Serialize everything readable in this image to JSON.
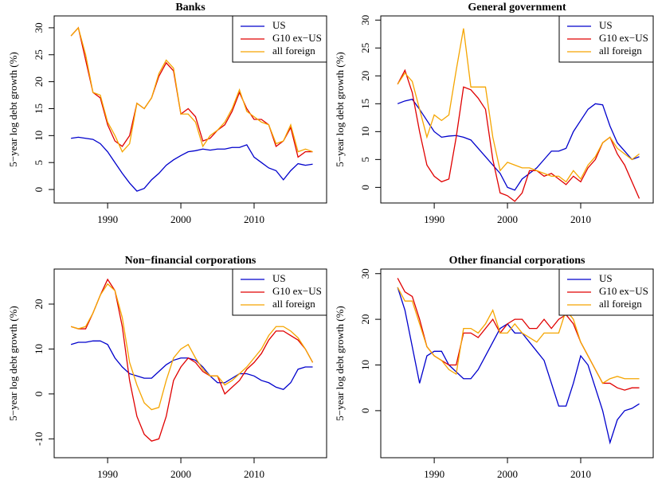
{
  "chart_data": [
    {
      "type": "line",
      "title": "Banks",
      "ylabel": "5−year log debt growth (%)",
      "legend": "topright",
      "x": [
        1985,
        1986,
        1987,
        1988,
        1989,
        1990,
        1991,
        1992,
        1993,
        1994,
        1995,
        1996,
        1997,
        1998,
        1999,
        2000,
        2001,
        2002,
        2003,
        2004,
        2005,
        2006,
        2007,
        2008,
        2009,
        2010,
        2011,
        2012,
        2013,
        2014,
        2015,
        2016,
        2017,
        2018
      ],
      "xlim": [
        1982.7,
        2019.9
      ],
      "xticks": [
        1990,
        2000,
        2010
      ],
      "ylim": [
        -2.5,
        32.2
      ],
      "yticks": [
        0,
        5,
        10,
        15,
        20,
        25,
        30
      ],
      "series": [
        {
          "name": "US",
          "color": "#0000cc",
          "values": [
            9.5,
            9.7,
            9.5,
            9.3,
            8.5,
            7,
            5,
            3,
            1.2,
            -0.3,
            0.2,
            1.8,
            3,
            4.5,
            5.5,
            6.3,
            7,
            7.2,
            7.5,
            7.3,
            7.5,
            7.5,
            7.8,
            7.8,
            8.3,
            6,
            5,
            4,
            3.5,
            1.8,
            3.5,
            4.8,
            4.5,
            4.7
          ]
        },
        {
          "name": "G10 ex−US",
          "color": "#e00000",
          "values": [
            28.5,
            30,
            24,
            18,
            17,
            12,
            9,
            8,
            10,
            16,
            15,
            17,
            21,
            23.5,
            22,
            14,
            15,
            13.5,
            9,
            9.5,
            11,
            12,
            14.5,
            18,
            15,
            13,
            13,
            12,
            8,
            9,
            11.5,
            6,
            7,
            7
          ]
        },
        {
          "name": "all foreign",
          "color": "#f5a500",
          "values": [
            28.5,
            30,
            25,
            18,
            17.5,
            12.5,
            10,
            7,
            8.5,
            16,
            15,
            17,
            21.5,
            24,
            22.5,
            14,
            14,
            12.5,
            8,
            10,
            11,
            12.5,
            15,
            18.5,
            14.5,
            13.5,
            12.5,
            12,
            8.5,
            9,
            12,
            7,
            7.5,
            7
          ]
        }
      ]
    },
    {
      "type": "line",
      "title": "General government",
      "ylabel": "5−year log debt growth (%)",
      "legend": "topright",
      "x": [
        1985,
        1986,
        1987,
        1988,
        1989,
        1990,
        1991,
        1992,
        1993,
        1994,
        1995,
        1996,
        1997,
        1998,
        1999,
        2000,
        2001,
        2002,
        2003,
        2004,
        2005,
        2006,
        2007,
        2008,
        2009,
        2010,
        2011,
        2012,
        2013,
        2014,
        2015,
        2016,
        2017,
        2018
      ],
      "xlim": [
        1982.7,
        2019.9
      ],
      "xticks": [
        1990,
        2000,
        2010
      ],
      "ylim": [
        -2.8,
        30.75
      ],
      "yticks": [
        0,
        5,
        10,
        15,
        20,
        25,
        30
      ],
      "series": [
        {
          "name": "US",
          "color": "#0000cc",
          "values": [
            15,
            15.5,
            15.8,
            14,
            12,
            10,
            9,
            9.2,
            9.3,
            9,
            8.5,
            7,
            5.5,
            4,
            2.5,
            0,
            -0.5,
            1.5,
            2.5,
            3.5,
            5,
            6.5,
            6.5,
            7,
            10,
            12,
            14,
            15,
            14.8,
            11,
            8,
            6.5,
            5,
            5.5
          ]
        },
        {
          "name": "G10 ex−US",
          "color": "#e00000",
          "values": [
            18.5,
            21,
            17,
            10,
            4,
            2,
            1,
            1.5,
            9,
            18,
            17.5,
            16,
            14,
            5,
            -1,
            -1.5,
            -2.5,
            -1,
            3,
            3,
            2,
            2.5,
            1.5,
            0.5,
            2,
            1,
            3.5,
            5,
            8,
            9,
            6,
            4,
            1,
            -2
          ]
        },
        {
          "name": "all foreign",
          "color": "#f5a500",
          "values": [
            18.5,
            20.5,
            19,
            14,
            9,
            13,
            12,
            13,
            21,
            28.5,
            18,
            18,
            18,
            9,
            3,
            4.5,
            4,
            3.5,
            3.5,
            3,
            2.5,
            2,
            2,
            1,
            3,
            1.5,
            4,
            5.5,
            8,
            9,
            7,
            6,
            5,
            6
          ]
        }
      ]
    },
    {
      "type": "line",
      "title": "Non−financial corporations",
      "ylabel": "5−year log debt growth (%)",
      "legend": "topright",
      "x": [
        1985,
        1986,
        1987,
        1988,
        1989,
        1990,
        1991,
        1992,
        1993,
        1994,
        1995,
        1996,
        1997,
        1998,
        1999,
        2000,
        2001,
        2002,
        2003,
        2004,
        2005,
        2006,
        2007,
        2008,
        2009,
        2010,
        2011,
        2012,
        2013,
        2014,
        2015,
        2016,
        2017,
        2018
      ],
      "xlim": [
        1982.7,
        2019.9
      ],
      "xticks": [
        1990,
        2000,
        2010
      ],
      "ylim": [
        -14.2,
        27.8
      ],
      "yticks": [
        -10,
        0,
        10,
        20
      ],
      "series": [
        {
          "name": "US",
          "color": "#0000cc",
          "values": [
            11,
            11.5,
            11.5,
            11.8,
            11.8,
            11,
            8,
            6,
            4.5,
            4,
            3.5,
            3.5,
            5,
            6.5,
            7.5,
            8,
            8,
            7.5,
            6,
            4,
            2.5,
            2.5,
            3.5,
            4.5,
            4.5,
            4,
            3,
            2.5,
            1.5,
            1,
            2.5,
            5.5,
            6,
            6
          ]
        },
        {
          "name": "G10 ex−US",
          "color": "#e00000",
          "values": [
            15,
            14.5,
            14.5,
            18,
            22,
            25.5,
            23,
            15,
            3,
            -5,
            -9,
            -10.5,
            -10,
            -5,
            3,
            6,
            8,
            7,
            5,
            4,
            4,
            0,
            1.5,
            3,
            5.5,
            7,
            9,
            12,
            14,
            14,
            13,
            12,
            10,
            7
          ]
        },
        {
          "name": "all foreign",
          "color": "#f5a500",
          "values": [
            15,
            14.5,
            15,
            18,
            22,
            24.5,
            23,
            17,
            7,
            2,
            -2,
            -3.5,
            -3,
            3,
            8,
            10,
            11,
            8,
            5.5,
            4,
            4,
            2,
            3,
            4.5,
            6,
            8,
            10,
            13,
            15,
            15,
            14,
            12.5,
            10,
            7
          ]
        }
      ]
    },
    {
      "type": "line",
      "title": "Other financial corporations",
      "ylabel": "5−year log debt growth (%)",
      "legend": "topright",
      "x": [
        1985,
        1986,
        1987,
        1988,
        1989,
        1990,
        1991,
        1992,
        1993,
        1994,
        1995,
        1996,
        1997,
        1998,
        1999,
        2000,
        2001,
        2002,
        2003,
        2004,
        2005,
        2006,
        2007,
        2008,
        2009,
        2010,
        2011,
        2012,
        2013,
        2014,
        2015,
        2016,
        2017,
        2018
      ],
      "xlim": [
        1982.7,
        2019.9
      ],
      "xticks": [
        1990,
        2000,
        2010
      ],
      "ylim": [
        -10.3,
        31
      ],
      "yticks": [
        0,
        10,
        20,
        30
      ],
      "series": [
        {
          "name": "US",
          "color": "#0000cc",
          "values": [
            27,
            22,
            14,
            6,
            12,
            13,
            13,
            10,
            8.5,
            7,
            7,
            9,
            12,
            15,
            18,
            19,
            17,
            17,
            15,
            13,
            11,
            6,
            1,
            1,
            6,
            12,
            10,
            5,
            0,
            -7,
            -2,
            0,
            0.5,
            1.5
          ]
        },
        {
          "name": "G10 ex−US",
          "color": "#e00000",
          "values": [
            29,
            26,
            25,
            20,
            14,
            12,
            11,
            10,
            10,
            17,
            17,
            16,
            18,
            20,
            17,
            19,
            20,
            20,
            18,
            18,
            20,
            18,
            20,
            21,
            19,
            15,
            12,
            9,
            6,
            6,
            5,
            4.5,
            5,
            5
          ]
        },
        {
          "name": "all foreign",
          "color": "#f5a500",
          "values": [
            27,
            24,
            24,
            19,
            14,
            12,
            11,
            9,
            8,
            18,
            18,
            17,
            19,
            22,
            17,
            17,
            19,
            17,
            16,
            15,
            17,
            17,
            17,
            22,
            20,
            15,
            12,
            9,
            6,
            7,
            7.5,
            7,
            7,
            7
          ]
        }
      ]
    }
  ]
}
